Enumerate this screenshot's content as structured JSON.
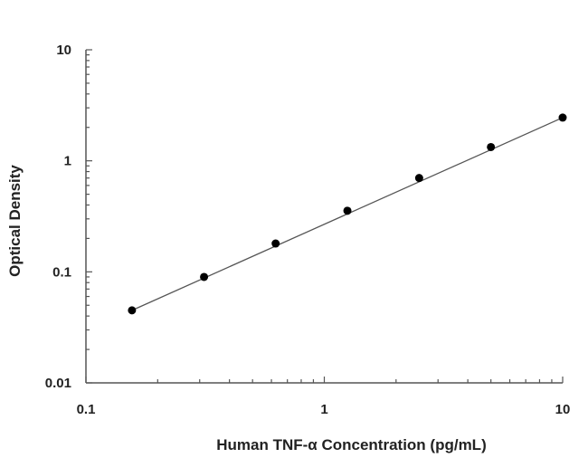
{
  "chart_data": {
    "type": "scatter",
    "xlabel": "Human TNF-α Concentration (pg/mL)",
    "ylabel": "Optical Density",
    "xscale": "log",
    "yscale": "log",
    "xlim": [
      0.1,
      10
    ],
    "ylim": [
      0.01,
      10
    ],
    "xticks": [
      "0.1",
      "1",
      "10"
    ],
    "yticks": [
      "0.01",
      "0.1",
      "1",
      "10"
    ],
    "grid": false,
    "legend": "none",
    "series": [
      {
        "x": [
          0.156,
          0.313,
          0.625,
          1.25,
          2.5,
          5,
          10
        ],
        "y": [
          0.045,
          0.09,
          0.18,
          0.355,
          0.7,
          1.33,
          2.45
        ]
      }
    ],
    "fit_line": {
      "from": [
        0.156,
        0.045
      ],
      "to": [
        10,
        2.45
      ]
    },
    "colors": {
      "points": "#000000",
      "line": "#555555",
      "axes": "#555555"
    }
  }
}
